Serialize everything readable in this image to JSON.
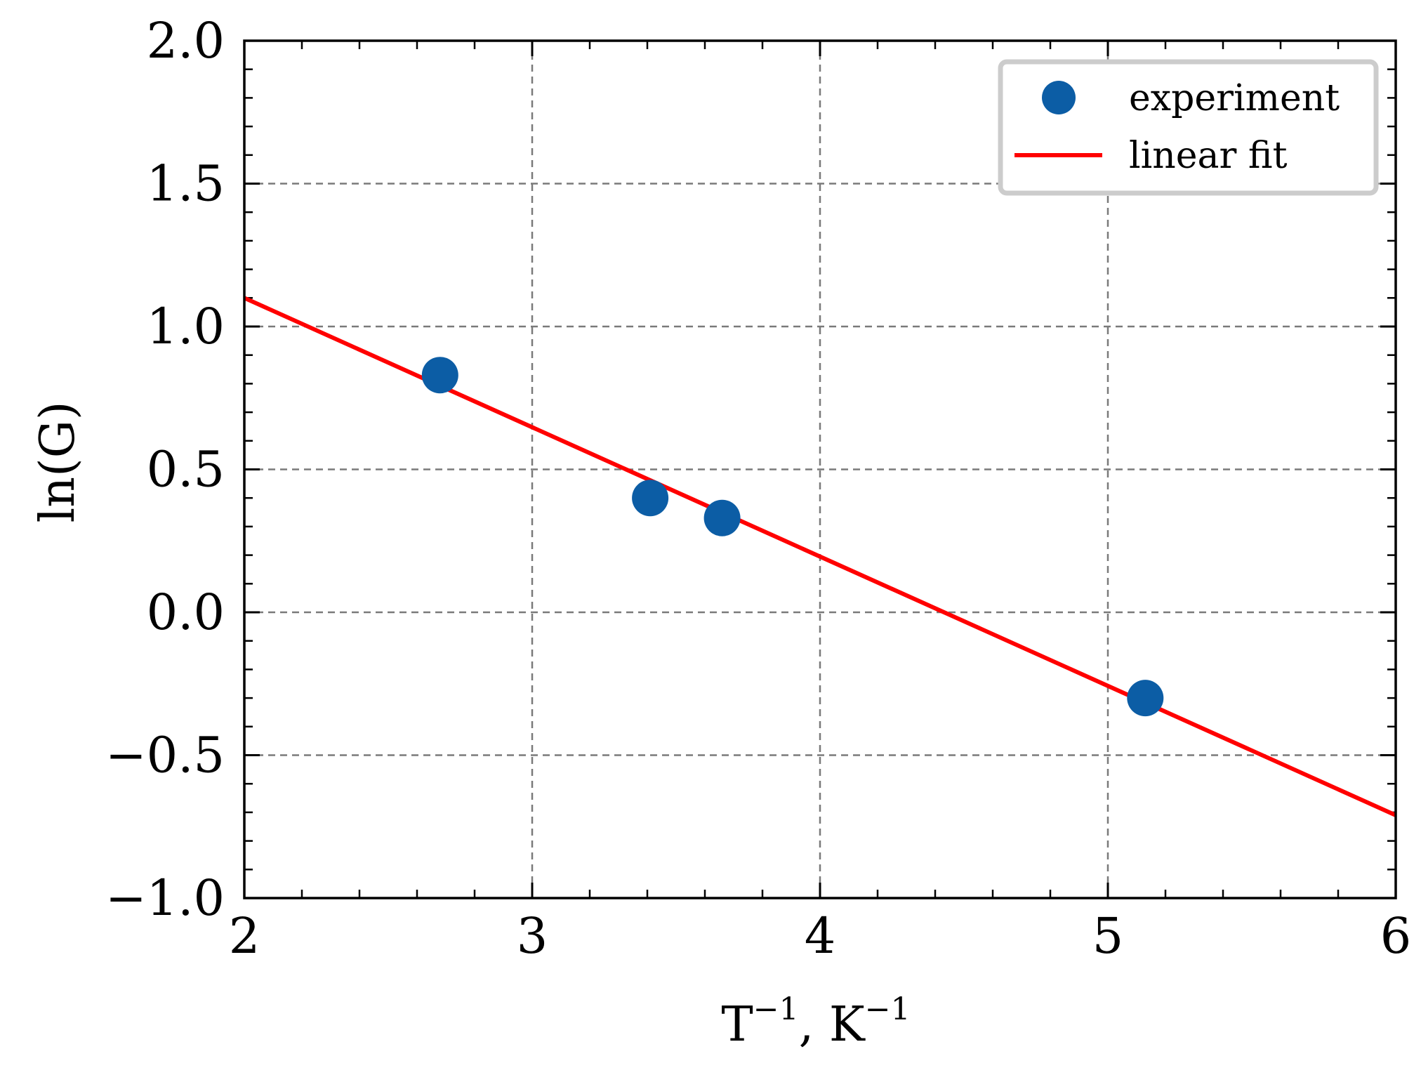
{
  "chart_data": {
    "type": "scatter",
    "title": "",
    "xlabel": {
      "base": "T",
      "base_sup": "−1",
      "sep": ", ",
      "unit": "K",
      "unit_sup": "−1"
    },
    "ylabel": "ln(G)",
    "xlim": [
      2,
      6
    ],
    "ylim": [
      -1.0,
      2.0
    ],
    "grid": true,
    "legend_position": "top-right",
    "xticks": [
      2,
      3,
      4,
      5,
      6
    ],
    "xtick_labels": [
      "2",
      "3",
      "4",
      "5",
      "6"
    ],
    "yticks": [
      -1.0,
      -0.5,
      0.0,
      0.5,
      1.0,
      1.5,
      2.0
    ],
    "ytick_labels": [
      "−1.0",
      "−0.5",
      "0.0",
      "0.5",
      "1.0",
      "1.5",
      "2.0"
    ],
    "series": [
      {
        "name": "experiment",
        "kind": "scatter",
        "color": "#0C5DA5",
        "x": [
          2.68,
          3.41,
          3.66,
          5.13
        ],
        "y": [
          0.83,
          0.4,
          0.33,
          -0.3
        ]
      },
      {
        "name": "linear fit",
        "kind": "line",
        "color": "#FF0000",
        "x": [
          2.0,
          6.0
        ],
        "y": [
          1.1,
          -0.71
        ]
      }
    ]
  }
}
